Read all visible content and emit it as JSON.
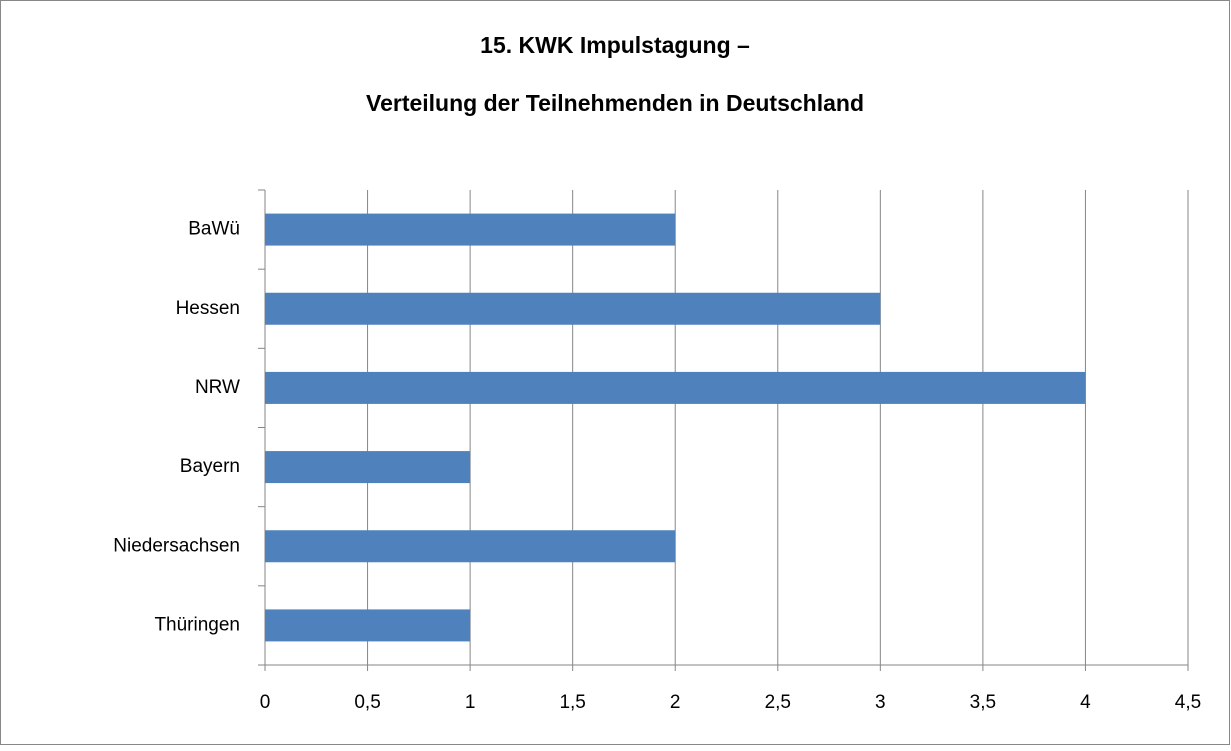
{
  "chart_data": {
    "type": "bar",
    "orientation": "horizontal",
    "title": [
      "15. KWK Impulstagung –",
      "Verteilung der Teilnehmenden in Deutschland"
    ],
    "categories": [
      "BaWü",
      "Hessen",
      "NRW",
      "Bayern",
      "Niedersachsen",
      "Thüringen"
    ],
    "values": [
      2,
      3,
      4,
      1,
      2,
      1
    ],
    "color": "#4f81bd",
    "xlim": [
      0,
      4.5
    ],
    "xticks": [
      0,
      {
        "value": 0.5,
        "label": "0,5"
      },
      1,
      {
        "value": 1.5,
        "label": "1,5"
      },
      2,
      {
        "value": 2.5,
        "label": "2,5"
      },
      3,
      {
        "value": 3.5,
        "label": "3,5"
      },
      4,
      {
        "value": 4.5,
        "label": "4,5"
      }
    ],
    "grid": true
  }
}
